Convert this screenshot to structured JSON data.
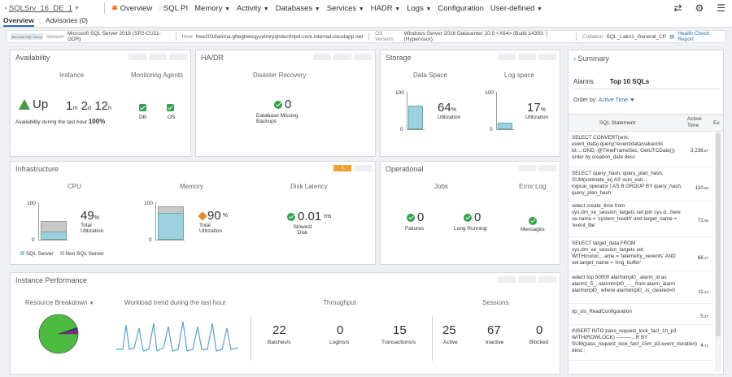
{
  "topbar": {
    "server": "SQLSrv_16_DE_1",
    "nav": [
      {
        "label": "Overview",
        "active": true,
        "icon": "overview-icon"
      },
      {
        "label": "SQL PI",
        "icon": "sqlpi-icon"
      },
      {
        "label": "Memory",
        "caret": true
      },
      {
        "label": "Activity",
        "caret": true
      },
      {
        "label": "Databases",
        "caret": true
      },
      {
        "label": "Services",
        "caret": true
      },
      {
        "label": "HADR",
        "caret": true
      },
      {
        "label": "Logs",
        "caret": true
      },
      {
        "label": "Configuration"
      },
      {
        "label": "User-defined",
        "caret": true
      }
    ],
    "icons": [
      "refresh-icon",
      "gear-icon",
      "menu-icon"
    ]
  },
  "subtabs": {
    "overview": "Overview",
    "advisories": "Advisories (0)"
  },
  "infobar": {
    "logo_text": "Microsoft SQL Server",
    "version_label": "Version",
    "version": "Microsoft SQL Server 2016 (SP2-CU11-GDR)",
    "host_label": "Host",
    "host": "free2016winna.gftegbwxqyvelmryqtvtec0npd.cxvx.internal.cloudapp.net",
    "os_label": "OS Version",
    "os": "Windows Server 2016 Datacenter 10.0 <X64> (Build 14393: ) (Hypervisor)",
    "collation_label": "Collation",
    "collation": "SQL_Latin1_General_CP",
    "health_link": "Health Check Report"
  },
  "availability": {
    "title": "Availability",
    "instance_head": "Instance",
    "agents_head": "Monitoring Agents",
    "status": "Up",
    "uptime": {
      "m": "1",
      "m_u": "m",
      "d": "2",
      "d_u": "d",
      "h": "12",
      "h_u": "h"
    },
    "avail_label": "Availability during the last hour",
    "avail_value": "100%",
    "agent_db": "DB",
    "agent_os": "OS"
  },
  "hadr": {
    "title": "HA/DR",
    "head": "Disaster Recovery",
    "value": "0",
    "label": "Database Missing Backups"
  },
  "storage": {
    "title": "Storage",
    "data_head": "Data Space",
    "log_head": "Log space",
    "data_pct": "64",
    "log_pct": "17",
    "pct_unit": "%",
    "util_label": "Utilization",
    "axis_max": "100",
    "axis_min": "0",
    "data_fill": 0.64,
    "log_fill": 0.17
  },
  "infrastructure": {
    "title": "Infrastructure",
    "alert_count": "1",
    "cpu_head": "CPU",
    "mem_head": "Memory",
    "disk_head": "Disk Latency",
    "cpu_value": "49",
    "mem_value": "90",
    "pct_unit": "%",
    "total_label": "Total Utilization",
    "disk_value": "0.01",
    "disk_unit": "ms",
    "disk_label": "Slowest Disk",
    "axis_max": "100",
    "axis_min": "0",
    "cpu_sql_fill": 0.22,
    "cpu_total_fill": 0.49,
    "mem_sql_fill": 0.72,
    "mem_total_fill": 0.9,
    "legend_sql": "SQL Server",
    "legend_non": "Non SQL Server",
    "color_sql": "#9fd0e0",
    "color_non": "#c8c8c8"
  },
  "operational": {
    "title": "Operational",
    "jobs_head": "Jobs",
    "error_head": "Error Log",
    "failures": "0",
    "failures_label": "Failures",
    "long_running": "0",
    "long_label": "Long Running",
    "messages_label": "Messages"
  },
  "performance": {
    "title": "Instance Performance",
    "breakdown_label": "Resource Breakdown",
    "trend_label": "Workload trend during the last hour",
    "throughput_head": "Throughput",
    "sessions_head": "Sessions",
    "batches": "22",
    "batches_label": "Batches/s",
    "logins": "0",
    "logins_label": "Logins/s",
    "transactions": "15",
    "transactions_label": "Transactions/s",
    "active": "25",
    "active_label": "Active",
    "inactive": "67",
    "inactive_label": "Inactive",
    "blocked": "0",
    "blocked_label": "Blocked"
  },
  "summary": {
    "title": "Summary",
    "tab_alarms": "Alarms",
    "tab_top": "Top 10 SQLs",
    "orderby_label": "Order by:",
    "orderby_value": "Active Time",
    "col_statement": "SQL Statement",
    "col_active": "Active Time",
    "col_ex": "Ex",
    "rows": [
      {
        "q": "SELECT CONVERT(xml, event_data).query('/event/data/value/chi ld::...OND,-@TimeFrameSec, GetUTCDate()) order by creation_date desc",
        "v": "3,236",
        "d": ".67"
      },
      {
        "q": "SELECT query_hash, query_plan_hash, SUM(estimate_io) AS sum_esti... logical_operator ) AS B GROUP BY query_hash, query_plan_hash",
        "v": "110",
        "d": ".99"
      },
      {
        "q": "select create_time from sys.dm_xe_session_targets xet join sys.d...here xe.name = 'system_health' and target_name = 'event_file'",
        "v": "71",
        "d": ".08"
      },
      {
        "q": "SELECT target_data FROM sys.dm_xe_session_targets xet WITH(noloc....ame = 'telemetry_xevents' AND xet.target_name = 'ring_buffer'",
        "v": "66",
        "d": ".27"
      },
      {
        "q": "select top 50000 alarmimpl0_.alarm_id as alarm1_5_, alarmimpl0_..._ from alarm_alarm alarmimpl0_ where alarmimpl0_.is_cleared=0",
        "v": "11",
        "d": ".24"
      },
      {
        "q": "xp_sls_ReadConfiguration",
        "v": "5",
        "d": ".37"
      },
      {
        "q": "INSERT INTO pass_request_lock_fact_1h_p3 WITH(ROWLOCK) ---------...R BY SUM(pass_request_lock_fact_15m_p3.event_duration) desc ;",
        "v": "4",
        "d": ".71"
      }
    ]
  }
}
